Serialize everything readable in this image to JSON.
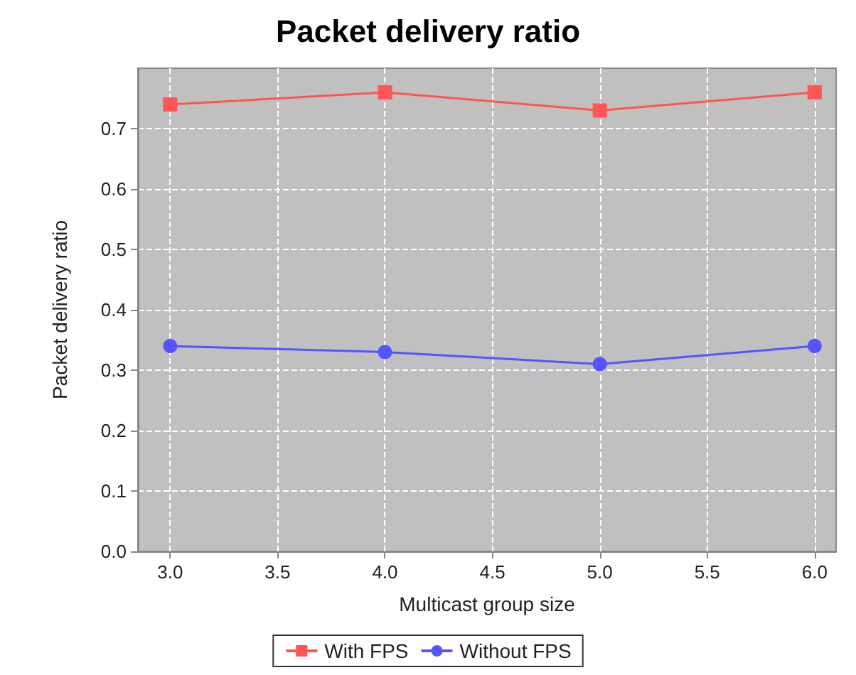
{
  "chart_data": {
    "type": "line",
    "title": "Packet delivery ratio",
    "xlabel": "Multicast group size",
    "ylabel": "Packet delivery ratio",
    "x": [
      3,
      4,
      5,
      6
    ],
    "series": [
      {
        "name": "With FPS",
        "color": "#ff5555",
        "marker": "square",
        "values": [
          0.74,
          0.76,
          0.73,
          0.76
        ]
      },
      {
        "name": "Without FPS",
        "color": "#5555ff",
        "marker": "circle",
        "values": [
          0.34,
          0.33,
          0.31,
          0.34
        ]
      }
    ],
    "xlim": [
      2.85,
      6.1
    ],
    "xticks": [
      {
        "value": 3,
        "label": "3.0"
      },
      {
        "value": 3.5,
        "label": "3.5"
      },
      {
        "value": 4,
        "label": "4.0"
      },
      {
        "value": 4.5,
        "label": "4.5"
      },
      {
        "value": 5,
        "label": "5.0"
      },
      {
        "value": 5.5,
        "label": "5.5"
      },
      {
        "value": 6,
        "label": "6.0"
      }
    ],
    "ylim": [
      0,
      0.8
    ],
    "yticks": [
      {
        "value": 0,
        "label": "0.0"
      },
      0.1,
      0.2,
      0.3,
      0.4,
      0.5,
      0.6,
      0.7
    ],
    "grid": true,
    "legend": "bottom",
    "line_style": "solid"
  }
}
